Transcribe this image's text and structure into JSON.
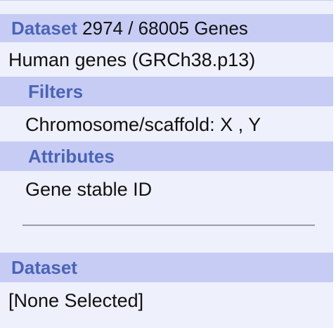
{
  "summary": {
    "dataset_label": "Dataset",
    "dataset_count": "2974 / 68005 Genes",
    "dataset_name": "Human genes (GRCh38.p13)",
    "filters_label": "Filters",
    "filter_value": "Chromosome/scaffold: X , Y",
    "attributes_label": "Attributes",
    "attribute_value": "Gene stable ID"
  },
  "second_dataset": {
    "dataset_label": "Dataset",
    "selection": "[None Selected]"
  },
  "colors": {
    "panel_background": "#eef0fb",
    "header_background": "#c7ccf4",
    "label_color": "#4a64b5"
  }
}
